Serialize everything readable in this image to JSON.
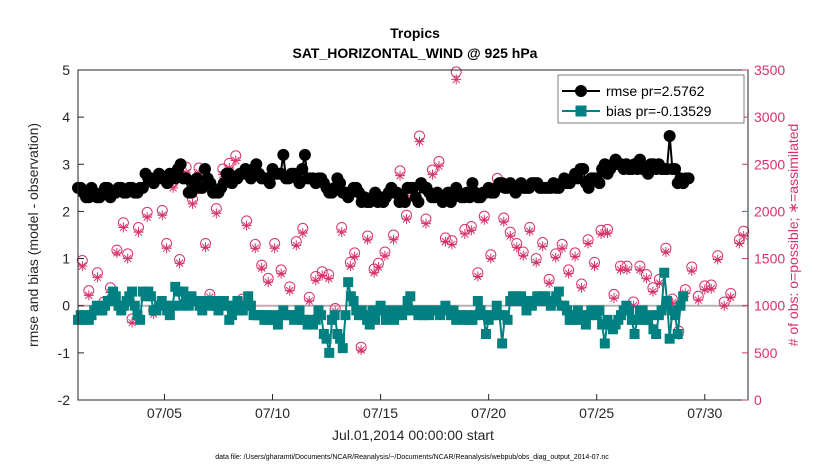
{
  "chart_data": {
    "type": "line",
    "title": "Tropics",
    "subtitle": "SAT_HORIZONTAL_WIND @ 925 hPa",
    "xlabel": "Jul.01,2014 00:00:00 start",
    "ylabel": "rmse and bias (model - observation)",
    "ylabel_right": "# of obs: o=possible; ∗=assimilated",
    "footnote": "data file: /Users/gharamti/Documents/NCAR/Reanalysis/~/Documents/NCAR/Reanalysis/webpub/obs_diag_output_2014-07.nc",
    "xlim": [
      1,
      32
    ],
    "ylim": [
      -2,
      5
    ],
    "ylim_right": [
      0,
      3500
    ],
    "x_ticks": [
      5,
      10,
      15,
      20,
      25,
      30
    ],
    "x_tick_labels": [
      "07/05",
      "07/10",
      "07/15",
      "07/20",
      "07/25",
      "07/30"
    ],
    "y_ticks": [
      -2,
      -1,
      0,
      1,
      2,
      3,
      4,
      5
    ],
    "y_tick_labels": [
      "-2",
      "-1",
      "0",
      "1",
      "2",
      "3",
      "4",
      "5"
    ],
    "y_ticks_right": [
      0,
      500,
      1000,
      1500,
      2000,
      2500,
      3000,
      3500
    ],
    "y_tick_labels_right": [
      "0",
      "500",
      "1000",
      "1500",
      "2000",
      "2500",
      "3000",
      "3500"
    ],
    "legend_position": "top-right",
    "colors": {
      "rmse": "#000000",
      "bias": "#008080",
      "obs": "#d6336c",
      "zero_line": "#b3b3b3"
    },
    "series": [
      {
        "name": "rmse pr=2.5762",
        "marker": "circle",
        "values": [
          2.5,
          2.5,
          2.4,
          2.3,
          2.3,
          2.5,
          2.4,
          2.3,
          2.3,
          2.4,
          2.5,
          2.5,
          2.3,
          2.4,
          2.4,
          2.5,
          2.5,
          2.4,
          2.4,
          2.5,
          2.5,
          2.4,
          2.4,
          2.5,
          2.5,
          2.8,
          2.7,
          2.7,
          2.6,
          2.7,
          2.8,
          2.7,
          2.7,
          2.6,
          2.8,
          2.7,
          2.7,
          2.9,
          3.0,
          2.7,
          2.7,
          2.4,
          2.4,
          2.6,
          2.7,
          2.5,
          2.5,
          2.9,
          2.7,
          2.6,
          2.4,
          2.4,
          2.4,
          2.5,
          2.6,
          2.8,
          2.8,
          2.6,
          2.7,
          2.7,
          2.8,
          2.8,
          2.9,
          2.8,
          2.7,
          2.9,
          3.0,
          2.8,
          2.7,
          2.7,
          2.7,
          2.6,
          2.9,
          2.8,
          2.8,
          2.8,
          3.2,
          2.7,
          2.7,
          2.8,
          2.8,
          2.7,
          2.6,
          2.9,
          3.2,
          2.7,
          2.7,
          2.7,
          2.6,
          2.7,
          2.7,
          2.6,
          2.5,
          2.4,
          2.4,
          2.5,
          2.7,
          2.6,
          2.4,
          2.4,
          2.3,
          2.4,
          2.5,
          2.5,
          2.4,
          2.2,
          2.3,
          2.2,
          2.2,
          2.3,
          2.4,
          2.2,
          2.3,
          2.2,
          2.3,
          2.4,
          2.5,
          2.4,
          2.4,
          2.2,
          2.3,
          2.2,
          2.5,
          2.5,
          2.5,
          2.3,
          2.2,
          2.6,
          2.5,
          2.5,
          2.4,
          2.3,
          2.3,
          2.4,
          2.3,
          2.2,
          2.3,
          2.4,
          2.2,
          2.3,
          2.5,
          2.4,
          2.3,
          2.3,
          2.4,
          2.3,
          2.6,
          2.4,
          2.3,
          2.3,
          2.4,
          2.4,
          2.5,
          2.4,
          2.4,
          2.5,
          2.6,
          2.6,
          2.5,
          2.5,
          2.6,
          2.5,
          2.4,
          2.5,
          2.6,
          2.5,
          2.5,
          2.5,
          2.6,
          2.6,
          2.6,
          2.5,
          2.5,
          2.5,
          2.5,
          2.5,
          2.6,
          2.5,
          2.5,
          2.6,
          2.7,
          2.6,
          2.6,
          2.7,
          2.8,
          2.7,
          2.9,
          2.9,
          2.6,
          2.5,
          2.7,
          2.7,
          2.7,
          2.6,
          2.9,
          3.0,
          2.8,
          2.9,
          3.0,
          3.1,
          3.0,
          3.0,
          2.9,
          3.0,
          2.9,
          2.9,
          3.0,
          2.9,
          3.1,
          2.9,
          2.9,
          2.8,
          3.0,
          3.0,
          2.9,
          3.0,
          2.9,
          2.9,
          2.9,
          3.6,
          2.9,
          2.9,
          2.6,
          2.7,
          2.6,
          2.7,
          2.7
        ]
      },
      {
        "name": "bias pr=-0.13529",
        "marker": "square",
        "values": [
          -0.3,
          -0.2,
          -0.3,
          -0.2,
          -0.3,
          -0.2,
          -0.1,
          0.0,
          -0.1,
          -0.1,
          0.0,
          0.1,
          0.1,
          0.3,
          0.2,
          0.0,
          -0.1,
          0.0,
          0.1,
          0.2,
          0.3,
          0.0,
          -0.2,
          -0.3,
          0.3,
          0.2,
          0.3,
          0.2,
          -0.1,
          -0.1,
          0.0,
          0.1,
          0.0,
          -0.1,
          -0.2,
          0.0,
          0.4,
          0.3,
          0.0,
          0.3,
          0.1,
          0.0,
          0.2,
          0.1,
          0.1,
          0.0,
          -0.1,
          0.1,
          0.1,
          0.0,
          0.1,
          0.0,
          -0.1,
          0.1,
          0.1,
          0.0,
          -0.3,
          -0.2,
          0.0,
          0.1,
          -0.1,
          -0.1,
          0.0,
          0.2,
          0.0,
          -0.2,
          -0.2,
          -0.2,
          -0.2,
          -0.3,
          -0.2,
          -0.3,
          -0.2,
          -0.3,
          -0.4,
          -0.2,
          -0.1,
          -0.2,
          -0.2,
          -0.2,
          -0.3,
          -0.2,
          -0.1,
          -0.3,
          -0.3,
          -0.4,
          -0.3,
          -0.4,
          -0.3,
          -0.1,
          -0.2,
          -0.6,
          -0.7,
          -1.0,
          -0.3,
          -0.2,
          -0.6,
          -0.7,
          -0.9,
          -0.2,
          0.5,
          0.2,
          0.1,
          -0.1,
          -0.2,
          -0.1,
          -0.2,
          -0.3,
          -0.4,
          -0.1,
          -0.3,
          -0.1,
          0.0,
          -0.1,
          -0.3,
          -0.2,
          -0.1,
          -0.3,
          -0.2,
          -0.1,
          -0.2,
          -0.1,
          0.1,
          0.2,
          -0.1,
          -0.1,
          -0.2,
          -0.1,
          -0.2,
          -0.1,
          -0.2,
          -0.1,
          -0.1,
          -0.1,
          -0.2,
          -0.1,
          0.0,
          -0.1,
          -0.2,
          -0.1,
          -0.3,
          -0.2,
          -0.2,
          -0.3,
          -0.2,
          -0.3,
          -0.3,
          -0.2,
          0.1,
          -0.1,
          -0.2,
          -0.6,
          -0.3,
          -0.2,
          -0.2,
          0.0,
          -0.2,
          -0.8,
          -0.2,
          -0.3,
          0.1,
          0.2,
          0.2,
          0.1,
          0.2,
          0.1,
          -0.1,
          0.1,
          0.0,
          0.1,
          0.2,
          0.1,
          0.2,
          0.2,
          0.1,
          0.0,
          0.1,
          0.2,
          0.3,
          0.0,
          0.0,
          -0.1,
          -0.3,
          -0.3,
          -0.2,
          -0.1,
          -0.3,
          -0.2,
          -0.4,
          -0.2,
          -0.1,
          -0.1,
          -0.2,
          -0.1,
          -0.4,
          -0.8,
          -0.3,
          -0.4,
          -0.5,
          -0.4,
          -0.3,
          -0.2,
          -0.1,
          0.0,
          -0.1,
          -0.3,
          -0.6,
          -0.3,
          -0.1,
          -0.1,
          -0.3,
          -0.3,
          -0.2,
          -0.5,
          -0.6,
          -0.2,
          -0.1,
          0.7,
          0.1,
          -0.7,
          -0.1,
          -0.2,
          -0.6,
          0.0,
          0.2
        ]
      }
    ],
    "obs_possible": {
      "x": [
        1.2,
        1.5,
        1.9,
        2.2,
        2.5,
        2.8,
        3.1,
        3.3,
        3.5,
        3.8,
        4.2,
        4.5,
        4.9,
        5.1,
        5.4,
        5.7,
        6.0,
        6.3,
        6.6,
        6.9,
        7.1,
        7.4,
        7.7,
        8.0,
        8.3,
        8.6,
        8.8,
        9.2,
        9.5,
        9.8,
        10.1,
        10.4,
        10.8,
        11.1,
        11.4,
        11.7,
        12.0,
        12.3,
        12.6,
        12.9,
        13.2,
        13.6,
        13.8,
        14.1,
        14.4,
        14.7,
        14.9,
        15.2,
        15.6,
        15.9,
        16.2,
        16.5,
        16.8,
        17.1,
        17.4,
        17.7,
        18.0,
        18.3,
        18.5,
        18.9,
        19.2,
        19.5,
        19.8,
        20.1,
        20.4,
        20.7,
        21.0,
        21.3,
        21.6,
        21.9,
        22.2,
        22.5,
        22.8,
        23.1,
        23.4,
        23.7,
        24.0,
        24.3,
        24.6,
        24.9,
        25.2,
        25.5,
        25.8,
        26.1,
        26.4,
        26.7,
        27.0,
        27.3,
        27.6,
        27.9,
        28.2,
        28.5,
        28.8,
        29.1,
        29.4,
        29.7,
        30.0,
        30.3,
        30.6,
        30.9,
        31.2,
        31.6,
        31.8
      ],
      "counts": [
        1480,
        1160,
        1350,
        1040,
        1190,
        1590,
        1880,
        1550,
        860,
        1830,
        1990,
        950,
        2010,
        1660,
        2310,
        1490,
        2470,
        2130,
        2460,
        1660,
        1120,
        2030,
        2450,
        2510,
        2590,
        1070,
        1900,
        1650,
        1430,
        1290,
        1660,
        1380,
        1200,
        1680,
        1820,
        1090,
        1310,
        1360,
        1330,
        970,
        1830,
        1460,
        1560,
        560,
        1740,
        1390,
        1450,
        1570,
        1750,
        2430,
        1960,
        2190,
        2800,
        1920,
        2440,
        2530,
        1720,
        1690,
        3480,
        1810,
        1840,
        1350,
        1950,
        1540,
        2350,
        1930,
        1780,
        1660,
        1570,
        1830,
        1500,
        1670,
        1280,
        1550,
        1650,
        1380,
        1560,
        1230,
        1700,
        1460,
        1800,
        1810,
        1120,
        1420,
        1420,
        1040,
        1420,
        1330,
        1190,
        1280,
        1610,
        1070,
        730,
        1170,
        1410,
        1100,
        1210,
        1220,
        1530,
        1040,
        1130,
        1700,
        1790
      ]
    },
    "obs_assimilated": {
      "x": [
        1.2,
        1.5,
        1.9,
        2.2,
        2.5,
        2.8,
        3.1,
        3.3,
        3.5,
        3.8,
        4.2,
        4.5,
        4.9,
        5.1,
        5.4,
        5.7,
        6.0,
        6.3,
        6.6,
        6.9,
        7.1,
        7.4,
        7.7,
        8.0,
        8.3,
        8.6,
        8.8,
        9.2,
        9.5,
        9.8,
        10.1,
        10.4,
        10.8,
        11.1,
        11.4,
        11.7,
        12.0,
        12.3,
        12.6,
        12.9,
        13.2,
        13.6,
        13.8,
        14.1,
        14.4,
        14.7,
        14.9,
        15.2,
        15.6,
        15.9,
        16.2,
        16.5,
        16.8,
        17.1,
        17.4,
        17.7,
        18.0,
        18.3,
        18.5,
        18.9,
        19.2,
        19.5,
        19.8,
        20.1,
        20.4,
        20.7,
        21.0,
        21.3,
        21.6,
        21.9,
        22.2,
        22.5,
        22.8,
        23.1,
        23.4,
        23.7,
        24.0,
        24.3,
        24.6,
        24.9,
        25.2,
        25.5,
        25.8,
        26.1,
        26.4,
        26.7,
        27.0,
        27.3,
        27.6,
        27.9,
        28.2,
        28.5,
        28.8,
        29.1,
        29.4,
        29.7,
        30.0,
        30.3,
        30.6,
        30.9,
        31.2,
        31.6,
        31.8
      ],
      "counts": [
        1420,
        1110,
        1300,
        1010,
        1140,
        1560,
        1830,
        1500,
        820,
        1780,
        1940,
        910,
        1960,
        1610,
        2250,
        1450,
        2410,
        2080,
        2410,
        1620,
        1090,
        1980,
        2390,
        2460,
        2540,
        1040,
        1850,
        1610,
        1400,
        1250,
        1610,
        1340,
        1160,
        1640,
        1770,
        1050,
        1270,
        1320,
        1290,
        940,
        1780,
        1420,
        1520,
        530,
        1700,
        1350,
        1410,
        1530,
        1700,
        2380,
        1920,
        2140,
        2740,
        1870,
        2390,
        2480,
        1680,
        1650,
        3400,
        1760,
        1800,
        1310,
        1910,
        1500,
        2300,
        1890,
        1740,
        1620,
        1530,
        1790,
        1460,
        1630,
        1240,
        1510,
        1610,
        1340,
        1520,
        1190,
        1660,
        1420,
        1760,
        1770,
        1080,
        1380,
        1380,
        1000,
        1380,
        1290,
        1150,
        1240,
        1570,
        1030,
        690,
        1130,
        1370,
        1060,
        1170,
        1180,
        1490,
        1000,
        1090,
        1660,
        1740
      ]
    }
  }
}
